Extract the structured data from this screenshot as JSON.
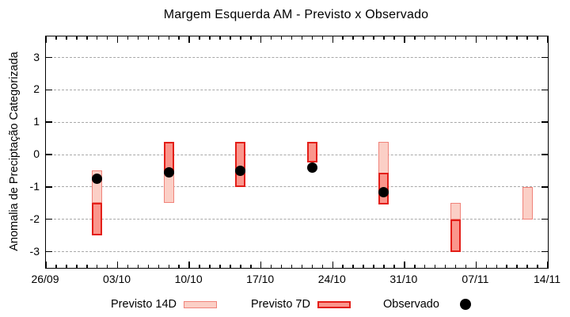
{
  "title": "Margem Esquerda AM - Previsto x Observado",
  "y_axis_label": "Anomalia de Preciptação Categorizada",
  "legend": {
    "items": [
      {
        "label": "Previsto 14D",
        "swatch": "light-pink-box"
      },
      {
        "label": "Previsto 7D",
        "swatch": "red-box"
      },
      {
        "label": "Observado",
        "swatch": "black-dot"
      }
    ]
  },
  "colors": {
    "previsto_14d_fill": "#fbcfc6",
    "previsto_14d_border": "#f0837a",
    "previsto_7d_fill": "#fa968c",
    "previsto_7d_border": "#e31e18",
    "observado": "#000000",
    "grid": "#a8a8a8"
  },
  "chart_data": {
    "type": "bar",
    "subtype": "floating-range-bars-with-scatter",
    "title": "Margem Esquerda AM - Previsto x Observado",
    "xlabel": "",
    "ylabel": "Anomalia de Preciptação Categorizada",
    "ylim": [
      -3.5,
      3.65
    ],
    "y_ticks": [
      -3,
      -2,
      -1,
      0,
      1,
      2,
      3
    ],
    "grid": "horizontal dashed at each y tick",
    "x_axis": {
      "start_label": "26/09",
      "end_label": "14/11",
      "total_days": 49,
      "tick_days": [
        0,
        7,
        14,
        21,
        28,
        35,
        42,
        49
      ],
      "tick_labels": [
        "26/09",
        "03/10",
        "10/10",
        "17/10",
        "24/10",
        "31/10",
        "07/11",
        "14/11"
      ],
      "minor_tick_step_days": 1
    },
    "series": [
      {
        "name": "Previsto 14D",
        "type": "range_bar",
        "points": [
          {
            "date": "01/10",
            "day": 5,
            "low": -1.5,
            "high": -0.5
          },
          {
            "date": "08/10",
            "day": 12,
            "low": -1.5,
            "high": 0.4
          },
          {
            "date": "29/10",
            "day": 33,
            "low": -1.5,
            "high": 0.4
          },
          {
            "date": "05/11",
            "day": 40,
            "low": -2.0,
            "high": -1.5
          },
          {
            "date": "12/11",
            "day": 47,
            "low": -2.0,
            "high": -1.0
          }
        ]
      },
      {
        "name": "Previsto 7D",
        "type": "range_bar",
        "points": [
          {
            "date": "01/10",
            "day": 5,
            "low": -2.5,
            "high": -1.5
          },
          {
            "date": "08/10",
            "day": 12,
            "low": -0.55,
            "high": 0.4
          },
          {
            "date": "15/10",
            "day": 19,
            "low": -1.0,
            "high": 0.4
          },
          {
            "date": "22/10",
            "day": 26,
            "low": -0.25,
            "high": 0.4
          },
          {
            "date": "29/10",
            "day": 33,
            "low": -1.55,
            "high": -0.55
          },
          {
            "date": "05/11",
            "day": 40,
            "low": -3.0,
            "high": -2.0
          }
        ]
      },
      {
        "name": "Observado",
        "type": "scatter",
        "points": [
          {
            "date": "01/10",
            "day": 5,
            "value": -0.75
          },
          {
            "date": "08/10",
            "day": 12,
            "value": -0.55
          },
          {
            "date": "15/10",
            "day": 19,
            "value": -0.5
          },
          {
            "date": "22/10",
            "day": 26,
            "value": -0.4
          },
          {
            "date": "29/10",
            "day": 33,
            "value": -1.15
          }
        ]
      }
    ]
  }
}
